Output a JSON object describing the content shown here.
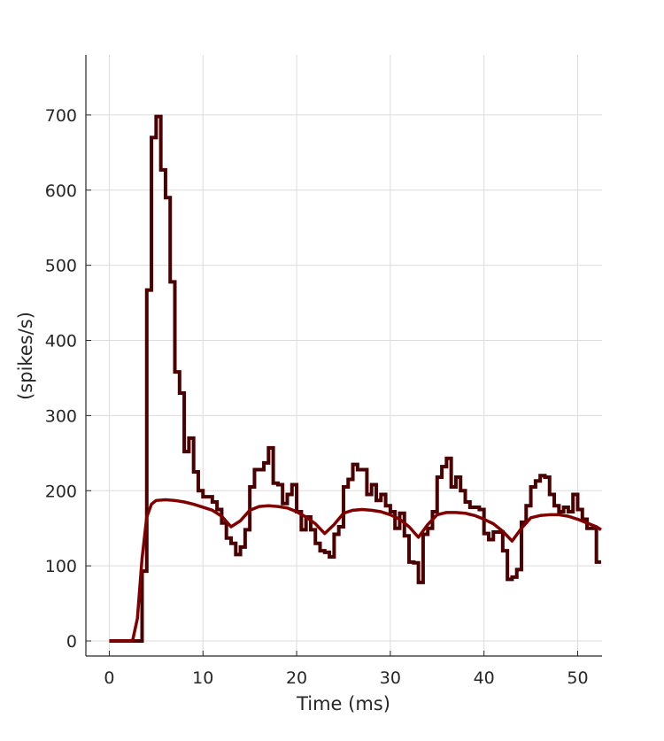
{
  "chart_data": {
    "type": "line",
    "title": "",
    "xlabel": "Time (ms)",
    "ylabel": "(spikes/s)",
    "xlim": [
      -2.5,
      52.6
    ],
    "ylim": [
      -20,
      780
    ],
    "xticks": [
      0,
      10,
      20,
      30,
      40,
      50
    ],
    "yticks": [
      0,
      100,
      200,
      300,
      400,
      500,
      600,
      700
    ],
    "grid": true,
    "series": [
      {
        "kind": "histogram-stairs",
        "color": "#4a0000",
        "bin_width": 0.5,
        "bin_start": 0,
        "values": [
          0,
          0,
          0,
          0,
          0,
          0,
          0,
          93,
          467,
          670,
          698,
          627,
          590,
          478,
          358,
          330,
          252,
          270,
          225,
          200,
          192,
          192,
          185,
          175,
          157,
          137,
          130,
          115,
          125,
          148,
          205,
          228,
          228,
          237,
          257,
          210,
          208,
          183,
          195,
          208,
          172,
          148,
          165,
          148,
          130,
          120,
          118,
          112,
          142,
          152,
          205,
          215,
          235,
          228,
          228,
          195,
          208,
          187,
          195,
          180,
          172,
          150,
          170,
          140,
          105,
          104,
          78,
          142,
          150,
          172,
          218,
          232,
          243,
          205,
          218,
          200,
          185,
          178,
          178,
          175,
          143,
          135,
          145,
          145,
          120,
          82,
          85,
          95,
          158,
          180,
          205,
          213,
          220,
          218,
          195,
          180,
          172,
          178,
          172,
          195,
          175,
          162,
          150,
          150,
          105
        ]
      },
      {
        "kind": "smooth",
        "color": "#800000",
        "x": [
          0,
          1,
          2,
          2.5,
          3,
          3.5,
          4,
          4.5,
          5,
          6,
          7,
          8,
          9,
          10,
          11,
          12,
          13,
          14,
          15,
          16,
          17,
          18,
          19,
          20,
          21,
          22,
          23,
          24,
          25,
          26,
          27,
          28,
          29,
          30,
          31,
          32,
          33,
          34,
          35,
          36,
          37,
          38,
          39,
          40,
          41,
          42,
          43,
          44,
          45,
          46,
          47,
          48,
          49,
          50,
          51,
          52,
          52.5
        ],
        "y": [
          0,
          0,
          0,
          1,
          30,
          110,
          165,
          182,
          187,
          188,
          187,
          185,
          182,
          178,
          174,
          166,
          152,
          160,
          174,
          179,
          180,
          179,
          177,
          172,
          165,
          156,
          143,
          155,
          170,
          174,
          175,
          174,
          172,
          168,
          162,
          152,
          138,
          155,
          168,
          171,
          171,
          170,
          167,
          162,
          156,
          146,
          133,
          150,
          164,
          167,
          168,
          168,
          166,
          162,
          157,
          152,
          148
        ]
      }
    ]
  }
}
